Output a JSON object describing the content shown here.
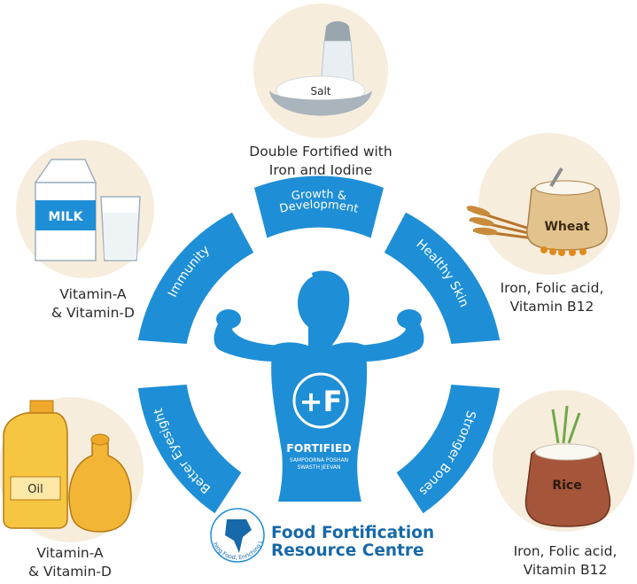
{
  "benefits": {
    "growth_1": "Growth &",
    "growth_2": "Development",
    "skin": "Healthy Skin",
    "bones": "Stronger Bones",
    "eyesight": "Better Eyesight",
    "immunity": "Immunity"
  },
  "foods": {
    "salt": {
      "label": "Salt",
      "caption_1": "Double Fortified with",
      "caption_2": "Iron and Iodine"
    },
    "milk": {
      "label": "MILK",
      "caption_1": "Vitamin-A",
      "caption_2": "& Vitamin-D"
    },
    "wheat": {
      "label": "Wheat",
      "caption_1": "Iron, Folic acid,",
      "caption_2": "Vitamin B12"
    },
    "oil": {
      "label": "Oil",
      "caption_1": "Vitamin-A",
      "caption_2": "& Vitamin-D"
    },
    "rice": {
      "label": "Rice",
      "caption_1": "Iron, Folic acid,",
      "caption_2": "Vitamin B12"
    }
  },
  "figure": {
    "mark": "+F",
    "word": "FORTIFIED",
    "tag_1": "SAMPOORNA POSHAN",
    "tag_2": "SWASTH JEEVAN"
  },
  "logo": {
    "title_1": "Food Fortification",
    "title_2": "Resource Centre",
    "ring": "Enriching Food, Enriching Lives"
  },
  "colors": {
    "primary": "#1e8ed6",
    "text": "#2b2b2b",
    "logo": "#1769a9"
  }
}
